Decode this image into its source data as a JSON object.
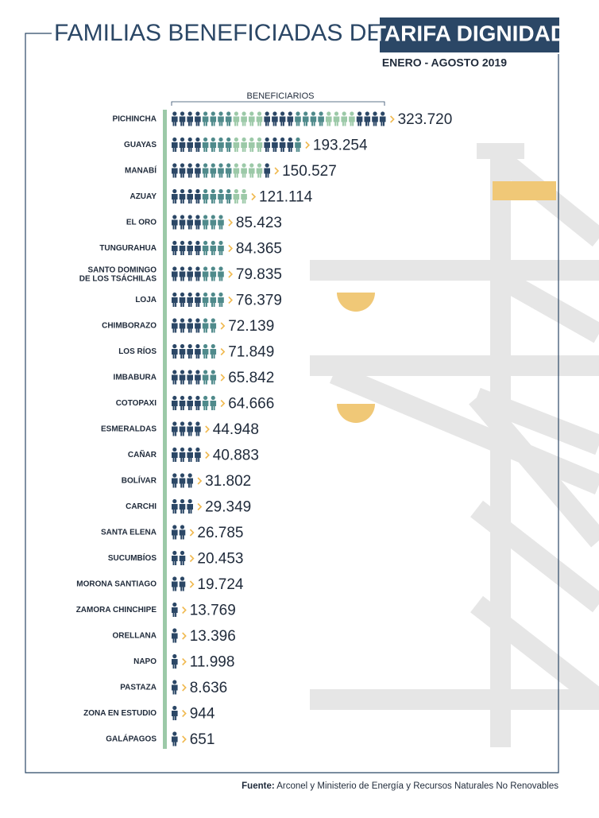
{
  "chart_data": {
    "type": "pictograph",
    "title": "FAMILIAS BENEFICIADAS DE LA",
    "title_highlight": "TARIFA DIGNIDAD",
    "subtitle": "ENERO - AGOSTO 2019",
    "axis_label": "BENEFICIARIOS",
    "categories": [
      "PICHINCHA",
      "GUAYAS",
      "MANABÍ",
      "AZUAY",
      "EL ORO",
      "TUNGURAHUA",
      "SANTO DOMINGO\nDE LOS TSÁCHILAS",
      "LOJA",
      "CHIMBORAZO",
      "LOS RÍOS",
      "IMBABURA",
      "COTOPAXI",
      "ESMERALDAS",
      "CAÑAR",
      "BOLÍVAR",
      "CARCHI",
      "SANTA ELENA",
      "SUCUMBÍOS",
      "MORONA SANTIAGO",
      "ZAMORA CHINCHIPE",
      "ORELLANA",
      "NAPO",
      "PASTAZA",
      "ZONA EN ESTUDIO",
      "GALÁPAGOS"
    ],
    "values": [
      323720,
      193254,
      150527,
      121114,
      85423,
      84365,
      79835,
      76379,
      72139,
      71849,
      65842,
      64666,
      44948,
      40883,
      31802,
      29349,
      26785,
      20453,
      19724,
      13769,
      13396,
      11998,
      8636,
      944,
      651
    ],
    "value_labels": [
      "323.720",
      "193.254",
      "150.527",
      "121.114",
      "85.423",
      "84.365",
      "79.835",
      "76.379",
      "72.139",
      "71.849",
      "65.842",
      "64.666",
      "44.948",
      "40.883",
      "31.802",
      "29.349",
      "26.785",
      "20.453",
      "19.724",
      "13.769",
      "13.396",
      "11.998",
      "8.636",
      "944",
      "651"
    ],
    "colors": [
      "#2b4766",
      "#4f8a8b",
      "#9cc9a8"
    ],
    "arrow_color": "#f0b94f",
    "source_label": "Fuente:",
    "source": "Arconel y Ministerio de Energía y Recursos Naturales No Renovables"
  }
}
